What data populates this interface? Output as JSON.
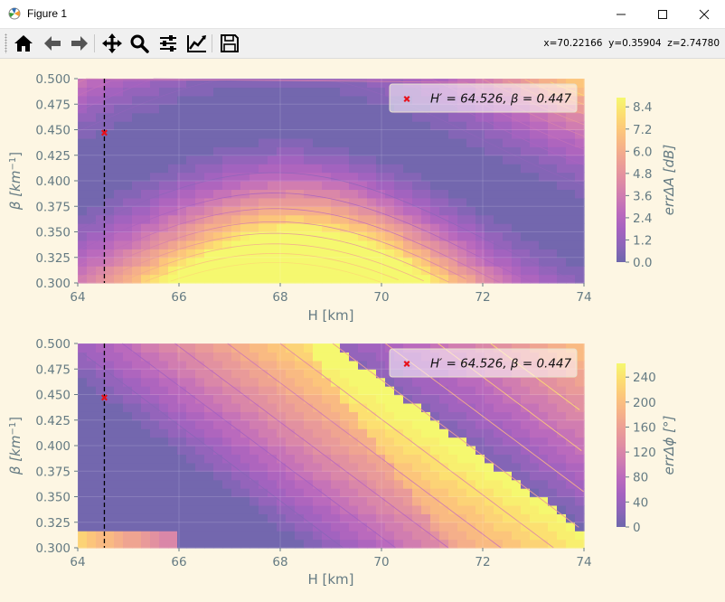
{
  "window": {
    "title": "Figure 1",
    "minimize": "—",
    "maximize": "☐",
    "close": "✕"
  },
  "toolbar": {
    "buttons": [
      "home-icon",
      "back-arrow-icon",
      "forward-arrow-icon",
      "pan-icon",
      "zoom-icon",
      "configure-subplots-icon",
      "edit-axis-icon",
      "save-icon"
    ],
    "coordinates": "x=70.22166  y=0.35904  z=2.74780"
  },
  "colors": {
    "background": "#fdf6e3",
    "text": "#657b83",
    "marker": "#e8101a",
    "vline": "#000000"
  },
  "chart_data": [
    {
      "type": "heatmap",
      "subtype": "filled-contour",
      "xlabel": "H [km]",
      "ylabel": "β [km⁻¹]",
      "xlim": [
        64,
        74
      ],
      "ylim": [
        0.3,
        0.5
      ],
      "xticks": [
        "64",
        "66",
        "68",
        "70",
        "72",
        "74"
      ],
      "yticks": [
        "0.300",
        "0.325",
        "0.350",
        "0.375",
        "0.400",
        "0.425",
        "0.450",
        "0.475",
        "0.500"
      ],
      "colorbar": {
        "label": "errΔA [dB]",
        "ticks": [
          "0.0",
          "1.2",
          "2.4",
          "3.6",
          "4.8",
          "6.0",
          "7.2",
          "8.4"
        ],
        "range": [
          0,
          8.9
        ],
        "colormap": "plasma"
      },
      "marker": {
        "x": 64.526,
        "y": 0.447,
        "legend": "H′ = 64.526,  β = 0.447"
      },
      "vline_x": 64.526,
      "legend_loc": "upper right",
      "grid": true
    },
    {
      "type": "heatmap",
      "subtype": "filled-contour",
      "xlabel": "H [km]",
      "ylabel": "β [km⁻¹]",
      "xlim": [
        64,
        74
      ],
      "ylim": [
        0.3,
        0.5
      ],
      "xticks": [
        "64",
        "66",
        "68",
        "70",
        "72",
        "74"
      ],
      "yticks": [
        "0.300",
        "0.325",
        "0.350",
        "0.375",
        "0.400",
        "0.425",
        "0.450",
        "0.475",
        "0.500"
      ],
      "colorbar": {
        "label": "errΔϕ [°]",
        "ticks": [
          "0",
          "40",
          "80",
          "120",
          "160",
          "200",
          "240"
        ],
        "range": [
          0,
          262
        ],
        "colormap": "plasma"
      },
      "marker": {
        "x": 64.526,
        "y": 0.447,
        "legend": "H′ = 64.526,  β = 0.447"
      },
      "vline_x": 64.526,
      "legend_loc": "upper right",
      "grid": true
    }
  ]
}
